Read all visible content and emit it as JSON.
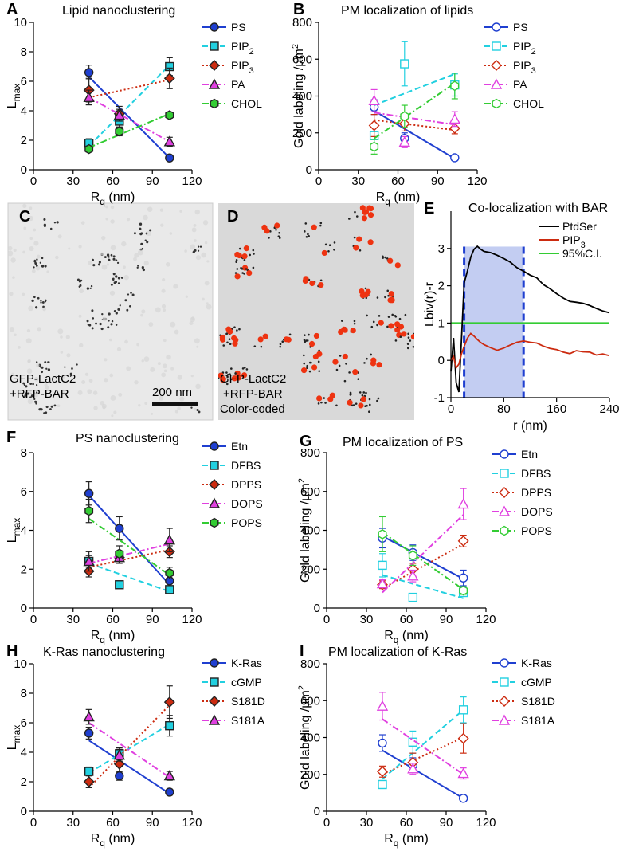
{
  "panels": {
    "C": {
      "letter": "C",
      "caption_line1": "GFP-LactC2",
      "caption_line2": "+RFP-BAR",
      "scalebar_label": "200 nm"
    },
    "D": {
      "letter": "D",
      "caption_line1": "GFP-LactC2",
      "caption_line2": "+RFP-BAR",
      "caption_line3": "Color-coded"
    }
  },
  "colors": {
    "blue": "#1f3fd0",
    "cyan": "#22d0e0",
    "red": "#cc2b10",
    "magenta": "#e040e0",
    "green": "#33cc33",
    "black": "#000000",
    "shade": "#b8c4f0",
    "em_bg": "#e6e6e6",
    "gold_red": "#ee3311"
  },
  "chart_data": [
    {
      "id": "A",
      "letter": "A",
      "type": "line",
      "title": "Lipid nanoclustering",
      "xlabel": "R",
      "xlabel_sub": "q",
      "xlabel_unit": " (nm)",
      "ylabel": "L",
      "ylabel_sub": "max",
      "xlim": [
        0,
        120
      ],
      "ylim": [
        0,
        10
      ],
      "xticks": [
        0,
        30,
        60,
        90,
        120
      ],
      "yticks": [
        0,
        2,
        4,
        6,
        8,
        10
      ],
      "marker_fill": true,
      "series": [
        {
          "name": "PS",
          "sub": "",
          "color": "blue",
          "marker": "circle",
          "dash": "solid",
          "x": [
            42,
            65,
            103
          ],
          "y": [
            6.6,
            3.7,
            0.8
          ],
          "err": [
            0.5,
            0.3,
            0.1
          ],
          "fit": [
            6.3,
            0.8
          ]
        },
        {
          "name": "PIP",
          "sub": "2",
          "color": "cyan",
          "marker": "square",
          "dash": "dash",
          "x": [
            42,
            65,
            103
          ],
          "y": [
            1.8,
            3.3,
            7.0
          ],
          "err": [
            0.3,
            0.4,
            0.6
          ],
          "fit": [
            1.6,
            7.1
          ]
        },
        {
          "name": "PIP",
          "sub": "3",
          "color": "red",
          "marker": "diamond",
          "dash": "dot",
          "x": [
            42,
            65,
            103
          ],
          "y": [
            5.4,
            3.8,
            6.2
          ],
          "err": [
            0.8,
            0.5,
            0.7
          ],
          "fit": [
            4.9,
            6.1
          ]
        },
        {
          "name": "PA",
          "sub": "",
          "color": "magenta",
          "marker": "triangle",
          "dash": "dashdot",
          "x": [
            42,
            65,
            103
          ],
          "y": [
            4.9,
            3.7,
            1.9
          ],
          "err": [
            0.5,
            0.4,
            0.3
          ],
          "fit": [
            4.9,
            1.9
          ]
        },
        {
          "name": "CHOL",
          "sub": "",
          "color": "green",
          "marker": "hexagon",
          "dash": "dashdot",
          "x": [
            42,
            65,
            103
          ],
          "y": [
            1.4,
            2.6,
            3.7
          ],
          "err": [
            0.2,
            0.3,
            0.2
          ],
          "fit": [
            1.5,
            3.8
          ]
        }
      ]
    },
    {
      "id": "B",
      "letter": "B",
      "type": "line",
      "title": "PM localization of lipids",
      "xlabel": "R",
      "xlabel_sub": "q",
      "xlabel_unit": " (nm)",
      "ylabel": "Gold labeling /µm",
      "ylabel_sup": "2",
      "xlim": [
        0,
        120
      ],
      "ylim": [
        0,
        800
      ],
      "xticks": [
        0,
        30,
        60,
        90,
        120
      ],
      "yticks": [
        0,
        200,
        400,
        600,
        800
      ],
      "marker_fill": false,
      "series": [
        {
          "name": "PS",
          "sub": "",
          "color": "blue",
          "marker": "circle",
          "dash": "solid",
          "x": [
            42,
            65,
            103
          ],
          "y": [
            340,
            170,
            65
          ],
          "err": [
            40,
            30,
            10
          ],
          "fit": [
            320,
            60
          ]
        },
        {
          "name": "PIP",
          "sub": "2",
          "color": "cyan",
          "marker": "square",
          "dash": "dash",
          "x": [
            42,
            65,
            103
          ],
          "y": [
            185,
            575,
            460
          ],
          "err": [
            50,
            120,
            60
          ],
          "fit": [
            350,
            520
          ]
        },
        {
          "name": "PIP",
          "sub": "3",
          "color": "red",
          "marker": "diamond",
          "dash": "dot",
          "x": [
            42,
            65,
            103
          ],
          "y": [
            240,
            250,
            225
          ],
          "err": [
            60,
            40,
            30
          ],
          "fit": [
            270,
            215
          ]
        },
        {
          "name": "PA",
          "sub": "",
          "color": "magenta",
          "marker": "triangle",
          "dash": "dashdot",
          "x": [
            42,
            65,
            103
          ],
          "y": [
            375,
            150,
            275
          ],
          "err": [
            60,
            30,
            40
          ],
          "fit": [
            310,
            245
          ]
        },
        {
          "name": "CHOL",
          "sub": "",
          "color": "green",
          "marker": "hexagon",
          "dash": "dashdot",
          "x": [
            42,
            65,
            103
          ],
          "y": [
            125,
            290,
            455
          ],
          "err": [
            40,
            60,
            70
          ],
          "fit": [
            170,
            470
          ]
        }
      ]
    },
    {
      "id": "E",
      "letter": "E",
      "type": "line",
      "title": "Co-localization with BAR",
      "xlabel": "r (nm)",
      "ylabel": "Lbiv(r)-r",
      "xlim": [
        0,
        240
      ],
      "ylim": [
        -1,
        4
      ],
      "xticks": [
        0,
        80,
        160,
        240
      ],
      "yticks": [
        -1,
        0,
        1,
        2,
        3
      ],
      "shade_range": [
        20,
        110
      ],
      "ci_level": 1,
      "legend": [
        {
          "name": "PtdSer",
          "sub": "",
          "color": "black"
        },
        {
          "name": "PIP",
          "sub": "3",
          "color": "red"
        },
        {
          "name": "95%C.I.",
          "sub": "",
          "color": "green"
        }
      ],
      "curves": [
        {
          "name": "PtdSer",
          "color": "black",
          "r": [
            0,
            4,
            8,
            12,
            16,
            20,
            25,
            30,
            35,
            40,
            45,
            50,
            60,
            70,
            80,
            90,
            100,
            110,
            120,
            130,
            140,
            150,
            160,
            170,
            180,
            190,
            200,
            210,
            220,
            230,
            240
          ],
          "v": [
            -0.3,
            0.6,
            -0.6,
            -0.85,
            0.6,
            2.1,
            2.4,
            2.75,
            2.95,
            3.05,
            3.0,
            2.95,
            2.9,
            2.8,
            2.7,
            2.62,
            2.5,
            2.42,
            2.3,
            2.2,
            2.0,
            1.9,
            1.8,
            1.7,
            1.6,
            1.55,
            1.5,
            1.45,
            1.4,
            1.35,
            1.3
          ]
        },
        {
          "name": "PIP3",
          "color": "red",
          "r": [
            0,
            4,
            8,
            12,
            16,
            20,
            25,
            30,
            35,
            40,
            45,
            50,
            60,
            70,
            80,
            90,
            100,
            110,
            120,
            130,
            140,
            150,
            160,
            170,
            180,
            190,
            200,
            210,
            220,
            230,
            240
          ],
          "v": [
            0.0,
            0.1,
            -0.2,
            -0.1,
            0.2,
            0.4,
            0.6,
            0.7,
            0.62,
            0.55,
            0.5,
            0.45,
            0.35,
            0.25,
            0.3,
            0.4,
            0.5,
            0.55,
            0.5,
            0.45,
            0.35,
            0.3,
            0.3,
            0.25,
            0.2,
            0.25,
            0.2,
            0.2,
            0.15,
            0.2,
            0.15
          ]
        }
      ]
    },
    {
      "id": "F",
      "letter": "F",
      "type": "line",
      "title": "PS nanoclustering",
      "xlabel": "R",
      "xlabel_sub": "q",
      "xlabel_unit": " (nm)",
      "ylabel": "L",
      "ylabel_sub": "max",
      "xlim": [
        0,
        120
      ],
      "ylim": [
        0,
        8
      ],
      "xticks": [
        0,
        30,
        60,
        90,
        120
      ],
      "yticks": [
        0,
        2,
        4,
        6,
        8
      ],
      "marker_fill": true,
      "series": [
        {
          "name": "Etn",
          "sub": "",
          "color": "blue",
          "marker": "circle",
          "dash": "solid",
          "x": [
            42,
            65,
            103
          ],
          "y": [
            5.9,
            4.1,
            1.4
          ],
          "err": [
            0.6,
            0.6,
            0.3
          ],
          "fit": [
            5.8,
            1.2
          ]
        },
        {
          "name": "DFBS",
          "sub": "",
          "color": "cyan",
          "marker": "square",
          "dash": "dash",
          "x": [
            42,
            65,
            103
          ],
          "y": [
            2.4,
            1.2,
            0.95
          ],
          "err": [
            0.3,
            0.1,
            0.1
          ],
          "fit": [
            2.3,
            0.85
          ]
        },
        {
          "name": "DPPS",
          "sub": "",
          "color": "red",
          "marker": "diamond",
          "dash": "dot",
          "x": [
            42,
            65,
            103
          ],
          "y": [
            1.9,
            2.6,
            2.9
          ],
          "err": [
            0.3,
            0.2,
            0.3
          ],
          "fit": [
            2.1,
            3.0
          ]
        },
        {
          "name": "DOPS",
          "sub": "",
          "color": "magenta",
          "marker": "triangle",
          "dash": "dashdot",
          "x": [
            42,
            65,
            103
          ],
          "y": [
            2.4,
            2.6,
            3.5
          ],
          "err": [
            0.5,
            0.3,
            0.6
          ],
          "fit": [
            2.3,
            3.3
          ]
        },
        {
          "name": "POPS",
          "sub": "",
          "color": "green",
          "marker": "hexagon",
          "dash": "dashdot",
          "x": [
            42,
            65,
            103
          ],
          "y": [
            5.0,
            2.8,
            1.8
          ],
          "err": [
            0.6,
            0.4,
            0.3
          ],
          "fit": [
            4.6,
            1.7
          ]
        }
      ]
    },
    {
      "id": "G",
      "letter": "G",
      "type": "line",
      "title": "PM localization of PS",
      "xlabel": "R",
      "xlabel_sub": "q",
      "xlabel_unit": " (nm)",
      "ylabel": "Gold labeling /µm",
      "ylabel_sup": "2",
      "xlim": [
        0,
        120
      ],
      "ylim": [
        0,
        800
      ],
      "xticks": [
        0,
        30,
        60,
        90,
        120
      ],
      "yticks": [
        0,
        200,
        400,
        600,
        800
      ],
      "marker_fill": false,
      "series": [
        {
          "name": "Etn",
          "sub": "",
          "color": "blue",
          "marker": "circle",
          "dash": "solid",
          "x": [
            42,
            65,
            103
          ],
          "y": [
            360,
            285,
            155
          ],
          "err": [
            50,
            40,
            40
          ],
          "fit": [
            370,
            150
          ]
        },
        {
          "name": "DFBS",
          "sub": "",
          "color": "cyan",
          "marker": "square",
          "dash": "dash",
          "x": [
            42,
            65,
            103
          ],
          "y": [
            220,
            55,
            80
          ],
          "err": [
            60,
            10,
            20
          ],
          "fit": [
            170,
            50
          ]
        },
        {
          "name": "DPPS",
          "sub": "",
          "color": "red",
          "marker": "diamond",
          "dash": "dot",
          "x": [
            42,
            65,
            103
          ],
          "y": [
            120,
            200,
            345
          ],
          "err": [
            20,
            30,
            30
          ],
          "fit": [
            100,
            330
          ]
        },
        {
          "name": "DOPS",
          "sub": "",
          "color": "magenta",
          "marker": "triangle",
          "dash": "dashdot",
          "x": [
            42,
            65,
            103
          ],
          "y": [
            125,
            165,
            535
          ],
          "err": [
            20,
            30,
            80
          ],
          "fit": [
            80,
            480
          ]
        },
        {
          "name": "POPS",
          "sub": "",
          "color": "green",
          "marker": "hexagon",
          "dash": "dashdot",
          "x": [
            42,
            65,
            103
          ],
          "y": [
            380,
            270,
            90
          ],
          "err": [
            90,
            50,
            20
          ],
          "fit": [
            390,
            95
          ]
        }
      ]
    },
    {
      "id": "H",
      "letter": "H",
      "type": "line",
      "title": "K-Ras nanoclustering",
      "xlabel": "R",
      "xlabel_sub": "q",
      "xlabel_unit": " (nm)",
      "ylabel": "L",
      "ylabel_sub": "max",
      "xlim": [
        0,
        120
      ],
      "ylim": [
        0,
        10
      ],
      "xticks": [
        0,
        30,
        60,
        90,
        120
      ],
      "yticks": [
        0,
        2,
        4,
        6,
        8,
        10
      ],
      "marker_fill": true,
      "series": [
        {
          "name": "K-Ras",
          "sub": "",
          "color": "blue",
          "marker": "circle",
          "dash": "solid",
          "x": [
            42,
            65,
            103
          ],
          "y": [
            5.3,
            2.4,
            1.3
          ],
          "err": [
            0.4,
            0.3,
            0.2
          ],
          "fit": [
            4.8,
            1.2
          ]
        },
        {
          "name": "cGMP",
          "sub": "",
          "color": "cyan",
          "marker": "square",
          "dash": "dash",
          "x": [
            42,
            65,
            103
          ],
          "y": [
            2.7,
            3.9,
            5.8
          ],
          "err": [
            0.3,
            0.4,
            0.7
          ],
          "fit": [
            2.6,
            5.9
          ]
        },
        {
          "name": "S181D",
          "sub": "",
          "color": "red",
          "marker": "diamond",
          "dash": "dot",
          "x": [
            42,
            65,
            103
          ],
          "y": [
            2.0,
            3.2,
            7.4
          ],
          "err": [
            0.4,
            0.5,
            1.1
          ],
          "fit": [
            1.6,
            7.2
          ]
        },
        {
          "name": "S181A",
          "sub": "",
          "color": "magenta",
          "marker": "triangle",
          "dash": "dashdot",
          "x": [
            42,
            65,
            103
          ],
          "y": [
            6.4,
            3.8,
            2.4
          ],
          "err": [
            0.5,
            0.4,
            0.3
          ],
          "fit": [
            6.0,
            2.3
          ]
        }
      ]
    },
    {
      "id": "I",
      "letter": "I",
      "type": "line",
      "title": "PM localization of K-Ras",
      "xlabel": "R",
      "xlabel_sub": "q",
      "xlabel_unit": " (nm)",
      "ylabel": "Gold labeling /µm",
      "ylabel_sup": "2",
      "xlim": [
        0,
        120
      ],
      "ylim": [
        0,
        800
      ],
      "xticks": [
        0,
        30,
        60,
        90,
        120
      ],
      "yticks": [
        0,
        200,
        400,
        600,
        800
      ],
      "marker_fill": false,
      "series": [
        {
          "name": "K-Ras",
          "sub": "",
          "color": "blue",
          "marker": "circle",
          "dash": "solid",
          "x": [
            42,
            65,
            103
          ],
          "y": [
            370,
            250,
            70
          ],
          "err": [
            45,
            40,
            10
          ],
          "fit": [
            330,
            70
          ]
        },
        {
          "name": "cGMP",
          "sub": "",
          "color": "cyan",
          "marker": "square",
          "dash": "dash",
          "x": [
            42,
            65,
            103
          ],
          "y": [
            145,
            375,
            550
          ],
          "err": [
            20,
            60,
            70
          ],
          "fit": [
            175,
            550
          ]
        },
        {
          "name": "S181D",
          "sub": "",
          "color": "red",
          "marker": "diamond",
          "dash": "dot",
          "x": [
            42,
            65,
            103
          ],
          "y": [
            215,
            265,
            395
          ],
          "err": [
            30,
            50,
            80
          ],
          "fit": [
            200,
            400
          ]
        },
        {
          "name": "S181A",
          "sub": "",
          "color": "magenta",
          "marker": "triangle",
          "dash": "dashdot",
          "x": [
            42,
            65,
            103
          ],
          "y": [
            570,
            230,
            205
          ],
          "err": [
            75,
            30,
            30
          ],
          "fit": [
            500,
            200
          ]
        }
      ]
    }
  ]
}
